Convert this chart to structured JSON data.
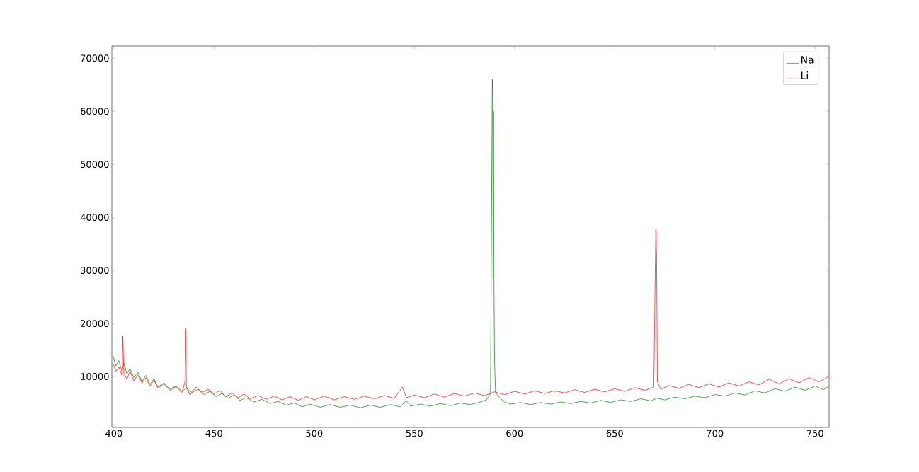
{
  "chart_data": {
    "type": "line",
    "xlim": [
      399,
      757
    ],
    "ylim": [
      400,
      72300
    ],
    "xticks": [
      400,
      450,
      500,
      550,
      600,
      650,
      700,
      750
    ],
    "yticks": [
      10000,
      20000,
      30000,
      40000,
      50000,
      60000,
      70000
    ],
    "legend": "top right",
    "series": [
      {
        "name": "Na",
        "color": "#008000",
        "x": [
          399.5,
          401,
          402.5,
          404,
          405,
          406.5,
          408,
          410,
          412,
          414,
          416,
          418,
          420,
          422,
          425,
          428,
          431,
          434,
          436,
          439,
          442,
          445,
          448,
          451,
          454,
          457,
          460,
          463,
          466,
          470,
          474,
          478,
          482,
          486,
          490,
          494,
          498,
          503,
          508,
          513,
          518,
          523,
          528,
          533,
          538,
          543,
          546,
          548,
          553,
          558,
          563,
          568,
          573,
          578,
          583,
          586,
          588,
          588.9,
          589.1,
          589.3,
          589.5,
          589.7,
          590,
          590.5,
          592,
          595,
          598,
          603,
          608,
          613,
          618,
          623,
          628,
          633,
          638,
          643,
          648,
          653,
          658,
          663,
          668,
          671,
          675,
          680,
          685,
          690,
          695,
          700,
          705,
          710,
          715,
          720,
          725,
          730,
          735,
          740,
          745,
          750,
          754,
          756.8
        ],
        "values": [
          14000,
          12000,
          13000,
          11000,
          12500,
          10500,
          11500,
          9800,
          10800,
          9000,
          10200,
          8500,
          9600,
          8000,
          8800,
          7600,
          8200,
          7200,
          7800,
          7000,
          7600,
          6600,
          7200,
          6200,
          6800,
          5900,
          6500,
          5500,
          6000,
          5200,
          5700,
          4900,
          5300,
          4600,
          5000,
          4300,
          4800,
          4200,
          4700,
          4200,
          4600,
          4100,
          4600,
          4200,
          4700,
          4300,
          5500,
          4400,
          4800,
          4400,
          4900,
          4500,
          5000,
          4700,
          5200,
          5600,
          6800,
          66000,
          62000,
          28500,
          60000,
          28500,
          13000,
          7000,
          6200,
          5200,
          4800,
          5100,
          4700,
          5100,
          4800,
          5200,
          4900,
          5300,
          5000,
          5500,
          5100,
          5600,
          5300,
          5800,
          5400,
          5900,
          5600,
          6100,
          5800,
          6300,
          6000,
          6600,
          6300,
          6900,
          6500,
          7300,
          6900,
          7700,
          7200,
          8000,
          7400,
          8200,
          7500,
          8100
        ]
      },
      {
        "name": "Li",
        "color": "#ff0000",
        "x": [
          399.5,
          401,
          402.5,
          404,
          404.5,
          405,
          406.5,
          408,
          410,
          412,
          414,
          416,
          418,
          420,
          422,
          425,
          428,
          431,
          434,
          435.5,
          435.8,
          436.2,
          438,
          441,
          444,
          447,
          450,
          453,
          456,
          459,
          462,
          465,
          468,
          472,
          476,
          480,
          484,
          488,
          492,
          496,
          500,
          505,
          510,
          515,
          520,
          525,
          530,
          535,
          540,
          544,
          546,
          550,
          555,
          560,
          565,
          570,
          575,
          580,
          585,
          590,
          595,
          600,
          605,
          610,
          615,
          620,
          625,
          630,
          635,
          640,
          645,
          650,
          655,
          660,
          665,
          669.5,
          670.5,
          670.9,
          671.3,
          673,
          677,
          682,
          687,
          692,
          697,
          702,
          707,
          712,
          717,
          722,
          727,
          732,
          737,
          742,
          747,
          752,
          756.8
        ],
        "values": [
          12500,
          11000,
          11800,
          10200,
          17600,
          10500,
          9500,
          11000,
          9200,
          10300,
          8800,
          9800,
          8200,
          9300,
          7800,
          8600,
          7400,
          8100,
          7000,
          9000,
          19000,
          8000,
          6500,
          8000,
          7000,
          7600,
          6700,
          7300,
          6200,
          6900,
          6000,
          6700,
          5800,
          6400,
          5700,
          6300,
          5600,
          6200,
          5500,
          6200,
          5600,
          6300,
          5600,
          6200,
          5700,
          6300,
          5800,
          6400,
          5900,
          8000,
          6000,
          6500,
          6000,
          6700,
          6100,
          6800,
          6300,
          6900,
          6400,
          7100,
          6600,
          7200,
          6700,
          7300,
          6800,
          7300,
          6900,
          7500,
          7000,
          7600,
          7100,
          7700,
          7200,
          7900,
          7400,
          8000,
          37700,
          32800,
          9000,
          7600,
          8300,
          7800,
          8500,
          7900,
          8600,
          8000,
          8800,
          8200,
          9000,
          8400,
          9500,
          8600,
          9600,
          8800,
          9800,
          9000,
          10000
        ]
      }
    ]
  }
}
